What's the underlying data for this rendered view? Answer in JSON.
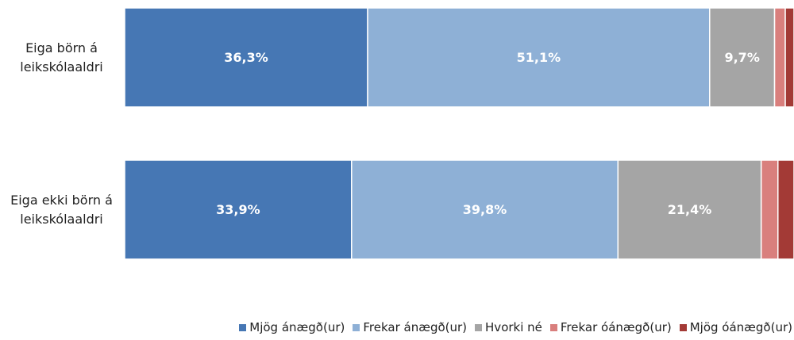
{
  "chart_data": {
    "type": "stacked-bar-horizontal",
    "categories": [
      "Eiga börn á leikskólaaldri",
      "Eiga ekki börn á leikskólaaldri"
    ],
    "xlim": [
      0,
      100
    ],
    "legend": "bottom-right",
    "series": [
      {
        "name": "Mjög ánægð(ur)",
        "color": "#4677b4",
        "values": [
          36.3,
          33.9
        ],
        "value_labels": [
          "36,3%",
          "33,9%"
        ]
      },
      {
        "name": "Frekar ánægð(ur)",
        "color": "#8eb0d6",
        "values": [
          51.1,
          39.8
        ],
        "value_labels": [
          "51,1%",
          "39,8%"
        ]
      },
      {
        "name": "Hvorki né",
        "color": "#a5a5a5",
        "values": [
          9.7,
          21.4
        ],
        "value_labels": [
          "9,7%",
          "21,4%"
        ]
      },
      {
        "name": "Frekar óánægð(ur)",
        "color": "#d97f7d",
        "values": [
          1.6,
          2.5
        ],
        "value_labels": [
          null,
          null
        ]
      },
      {
        "name": "Mjög óánægð(ur)",
        "color": "#a33a36",
        "values": [
          1.3,
          2.4
        ],
        "value_labels": [
          null,
          null
        ]
      }
    ]
  }
}
